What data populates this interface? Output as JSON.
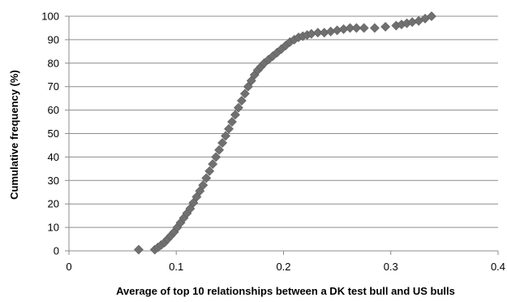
{
  "chart_data": {
    "type": "scatter",
    "title": "",
    "xlabel": "Average of top 10 relationships  between a DK test bull and US  bulls",
    "ylabel": "Cumulative frequency (%)",
    "xlim": [
      0,
      0.4
    ],
    "ylim": [
      0,
      100
    ],
    "x_ticks": [
      0,
      0.1,
      0.2,
      0.3,
      0.4
    ],
    "x_tick_labels": [
      "0",
      "0.1",
      "0.2",
      "0.3",
      "0.4"
    ],
    "y_ticks": [
      0,
      10,
      20,
      30,
      40,
      50,
      60,
      70,
      80,
      90,
      100
    ],
    "y_tick_labels": [
      "0",
      "10",
      "20",
      "30",
      "40",
      "50",
      "60",
      "70",
      "80",
      "90",
      "100"
    ],
    "grid": "horizontal",
    "legend": "none",
    "marker": "diamond",
    "marker_color": "#707070",
    "series": [
      {
        "x": [
          0.065,
          0.08,
          0.083,
          0.086,
          0.089,
          0.092,
          0.095,
          0.098,
          0.101,
          0.104,
          0.107,
          0.11,
          0.113,
          0.116,
          0.119,
          0.122,
          0.125,
          0.128,
          0.131,
          0.134,
          0.137,
          0.14,
          0.143,
          0.146,
          0.149,
          0.152,
          0.155,
          0.158,
          0.161,
          0.164,
          0.167,
          0.17,
          0.173,
          0.176,
          0.179,
          0.182,
          0.186,
          0.19,
          0.194,
          0.198,
          0.202,
          0.206,
          0.21,
          0.214,
          0.218,
          0.222,
          0.226,
          0.232,
          0.238,
          0.244,
          0.25,
          0.256,
          0.262,
          0.268,
          0.275,
          0.285,
          0.295,
          0.305,
          0.31,
          0.315,
          0.32,
          0.326,
          0.332,
          0.338
        ],
        "y": [
          0.5,
          0.5,
          1.5,
          2.5,
          3.5,
          5,
          6.5,
          8,
          10,
          12,
          14,
          16,
          18,
          20.5,
          23,
          25.5,
          28,
          31,
          34,
          37,
          40,
          43,
          46,
          49,
          52,
          55,
          58,
          61,
          64,
          67,
          70,
          72.5,
          75,
          77,
          78.5,
          80,
          81.5,
          83,
          84.5,
          86,
          87.5,
          89,
          90,
          91,
          91.5,
          92,
          92.5,
          93,
          93,
          93.5,
          94,
          94.5,
          95,
          95,
          95,
          95,
          95.5,
          96,
          96.5,
          97,
          97.5,
          98,
          99,
          100
        ]
      }
    ]
  }
}
